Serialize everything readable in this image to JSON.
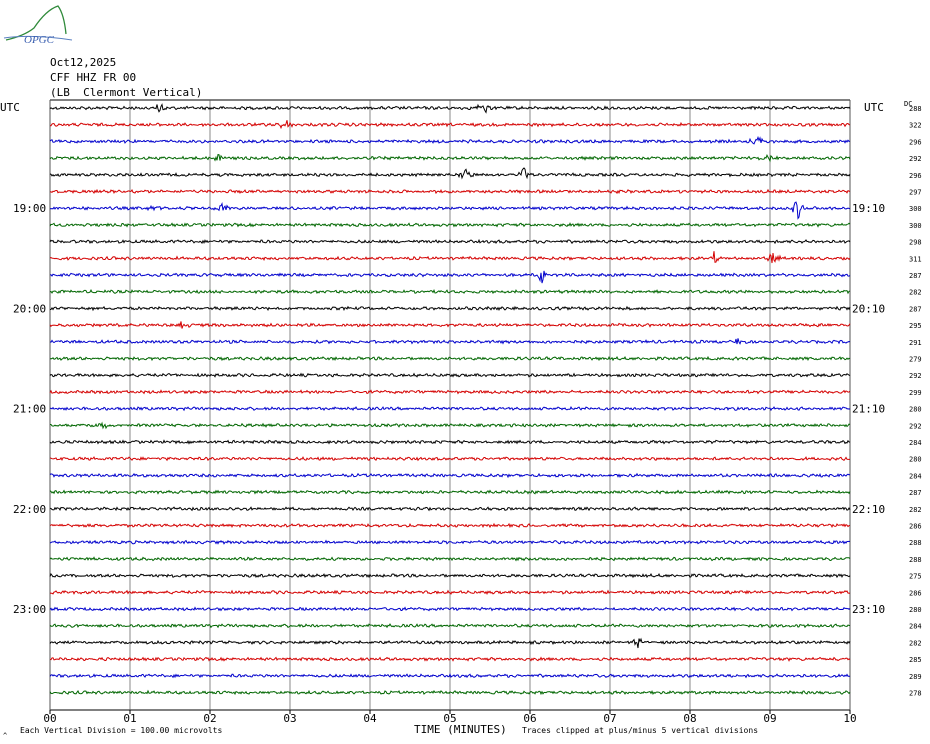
{
  "header": {
    "date": "Oct12,2025",
    "station": "CFF HHZ FR 00",
    "location": "(LB  Clermont Vertical)",
    "logo_text": "OPGC"
  },
  "footer": {
    "scale_note": "Each Vertical Division =  100.00 microvolts",
    "clip_note": "Traces clipped at plus/minus 5 vertical divisions",
    "corner_mark": "^"
  },
  "chart_data": {
    "type": "line",
    "title": "",
    "xlabel": "TIME (MINUTES)",
    "ylabel": "",
    "xlim": [
      0,
      10
    ],
    "x_ticks": [
      "00",
      "01",
      "02",
      "03",
      "04",
      "05",
      "06",
      "07",
      "08",
      "09",
      "10"
    ],
    "left_axis_label": "UTC",
    "right_axis_label": "UTC",
    "dc_label": "DC",
    "left_hour_labels": [
      {
        "row": 6,
        "label": "19:00"
      },
      {
        "row": 12,
        "label": "20:00"
      },
      {
        "row": 18,
        "label": "21:00"
      },
      {
        "row": 24,
        "label": "22:00"
      },
      {
        "row": 30,
        "label": "23:00"
      }
    ],
    "right_hour_labels": [
      {
        "row": 6,
        "label": "19:10"
      },
      {
        "row": 12,
        "label": "20:10"
      },
      {
        "row": 18,
        "label": "21:10"
      },
      {
        "row": 24,
        "label": "22:10"
      },
      {
        "row": 30,
        "label": "23:10"
      }
    ],
    "trace_colors": [
      "#000000",
      "#d40000",
      "#0000cc",
      "#006600"
    ],
    "dc_offsets": [
      288,
      322,
      296,
      292,
      296,
      297,
      300,
      300,
      298,
      311,
      287,
      282,
      287,
      295,
      291,
      279,
      292,
      299,
      280,
      292,
      284,
      280,
      284,
      287,
      282,
      286,
      288,
      288,
      275,
      286,
      280,
      284,
      282,
      285,
      289,
      278
    ],
    "events": [
      {
        "row": 0,
        "minute": 1.38,
        "amp": 8
      },
      {
        "row": 0,
        "minute": 5.42,
        "amp": 9
      },
      {
        "row": 1,
        "minute": 2.95,
        "amp": 7
      },
      {
        "row": 2,
        "minute": 8.85,
        "amp": 8
      },
      {
        "row": 3,
        "minute": 2.12,
        "amp": 6
      },
      {
        "row": 3,
        "minute": 8.98,
        "amp": 4
      },
      {
        "row": 4,
        "minute": 5.2,
        "amp": 7
      },
      {
        "row": 4,
        "minute": 5.92,
        "amp": 8
      },
      {
        "row": 6,
        "minute": 1.28,
        "amp": 5
      },
      {
        "row": 6,
        "minute": 2.15,
        "amp": 7
      },
      {
        "row": 6,
        "minute": 9.35,
        "amp": 11
      },
      {
        "row": 9,
        "minute": 8.3,
        "amp": 6
      },
      {
        "row": 9,
        "minute": 9.05,
        "amp": 8
      },
      {
        "row": 10,
        "minute": 6.15,
        "amp": 9
      },
      {
        "row": 13,
        "minute": 1.65,
        "amp": 4
      },
      {
        "row": 14,
        "minute": 8.6,
        "amp": 3
      },
      {
        "row": 19,
        "minute": 0.65,
        "amp": 4
      },
      {
        "row": 32,
        "minute": 7.35,
        "amp": 6
      }
    ]
  }
}
